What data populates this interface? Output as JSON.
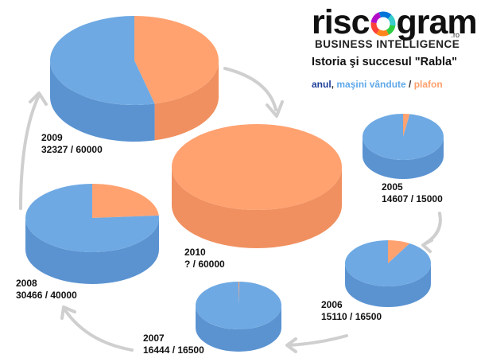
{
  "brand": {
    "prefix": "risc",
    "suffix": "grama",
    "tld": ".ro",
    "tagline": "BUSINESS INTELLIGENCE"
  },
  "chart_data": {
    "type": "pie",
    "title": "Istoria şi succesul \"Rabla\"",
    "legend": {
      "year": "anul",
      "sold": "maşini vândute",
      "cap": "plafon",
      "sep1": ", ",
      "sep2": " / ",
      "sold_color": "#6ea9e3",
      "cap_color": "#ffa270"
    },
    "pies": [
      {
        "year": "2005",
        "sold": 14607,
        "cap": 15000,
        "label_text": "14607 / 15000"
      },
      {
        "year": "2006",
        "sold": 15110,
        "cap": 16500,
        "label_text": "15110 / 16500"
      },
      {
        "year": "2007",
        "sold": 16444,
        "cap": 16500,
        "label_text": "16444 / 16500"
      },
      {
        "year": "2008",
        "sold": 30466,
        "cap": 40000,
        "label_text": "30466 / 40000"
      },
      {
        "year": "2009",
        "sold": 32327,
        "cap": 60000,
        "label_text": "32327 / 60000"
      },
      {
        "year": "2010",
        "sold": null,
        "cap": 60000,
        "label_text": "? / 60000"
      }
    ]
  }
}
